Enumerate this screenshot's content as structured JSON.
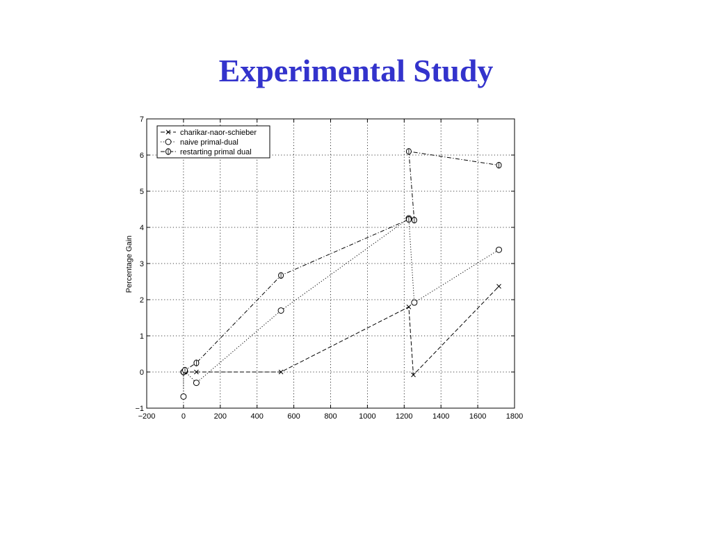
{
  "slide": {
    "title": "Experimental Study"
  },
  "chart_data": {
    "type": "line",
    "title": "",
    "xlabel": "",
    "ylabel": "Percentage Gain",
    "xlim": [
      -200,
      1800
    ],
    "ylim": [
      -1,
      7
    ],
    "x_ticks": [
      -200,
      0,
      200,
      400,
      600,
      800,
      1000,
      1200,
      1400,
      1600,
      1800
    ],
    "y_ticks": [
      -1,
      0,
      1,
      2,
      3,
      4,
      5,
      6,
      7
    ],
    "x_tick_labels": [
      "−200",
      "0",
      "200",
      "400",
      "600",
      "800",
      "1000",
      "1200",
      "1400",
      "1600",
      "1800"
    ],
    "y_tick_labels": [
      "−1",
      "0",
      "1",
      "2",
      "3",
      "4",
      "5",
      "6",
      "7"
    ],
    "grid": true,
    "legend_position": "top-left",
    "line_color": "#000000",
    "series": [
      {
        "name": "charikar-naor-schieber",
        "marker": "x",
        "line_style": "dashed",
        "legend_sample": "−×−",
        "x": [
          0,
          8,
          70,
          530,
          1225,
          1250,
          1715
        ],
        "y": [
          0,
          0,
          0,
          0,
          1.8,
          -0.08,
          2.37
        ]
      },
      {
        "name": "naive primal-dual",
        "marker": "o",
        "line_style": "dotted",
        "legend_sample": "··○··",
        "x": [
          0,
          0,
          8,
          70,
          530,
          1225,
          1255,
          1715
        ],
        "y": [
          -0.68,
          0,
          0.02,
          -0.3,
          1.7,
          4.25,
          1.92,
          3.38
        ]
      },
      {
        "name": "restarting primal dual",
        "marker": "diamond",
        "line_style": "dashdot",
        "legend_sample": "·◇·",
        "x": [
          0,
          8,
          70,
          530,
          1225,
          1255,
          1225,
          1715
        ],
        "y": [
          0,
          0.05,
          0.25,
          2.67,
          4.22,
          4.2,
          6.1,
          5.72
        ]
      }
    ]
  }
}
